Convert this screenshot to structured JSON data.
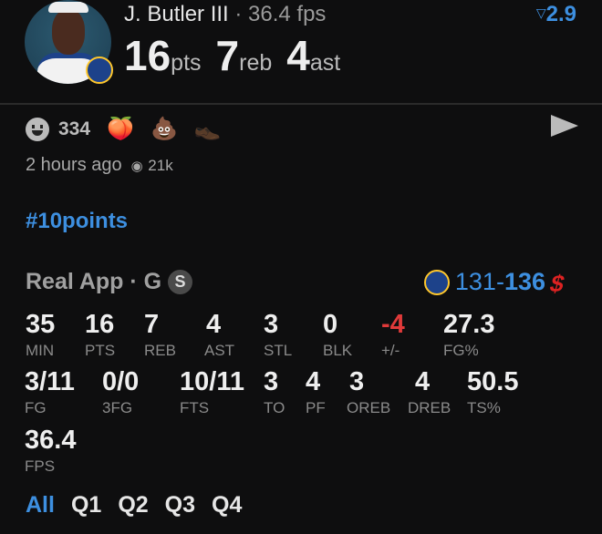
{
  "player": {
    "name": "J. Butler III",
    "fps_text": "36.4 fps",
    "pts": "16",
    "pts_unit": "pts",
    "reb": "7",
    "reb_unit": "reb",
    "ast": "4",
    "ast_unit": "ast",
    "delta": "2.9",
    "delta_icon": "down-triangle-icon"
  },
  "post": {
    "reaction_count": "334",
    "emojis": [
      "🍑",
      "💩",
      "👞"
    ],
    "time": "2 hours ago",
    "views": "21k",
    "hashtag": "#10points"
  },
  "game": {
    "source": "Real App",
    "position": "G",
    "starter_badge": "S",
    "score_home": "131",
    "score_sep": "-",
    "score_away": "136"
  },
  "stats_row1": [
    {
      "v": "35",
      "l": "MIN"
    },
    {
      "v": "16",
      "l": "PTS"
    },
    {
      "v": "7",
      "l": "REB"
    },
    {
      "v": "4",
      "l": "AST"
    },
    {
      "v": "3",
      "l": "STL"
    },
    {
      "v": "0",
      "l": "BLK"
    },
    {
      "v": "-4",
      "l": "+/-"
    },
    {
      "v": "27.3",
      "l": "FG%"
    }
  ],
  "stats_row2": [
    {
      "v": "3/11",
      "l": "FG"
    },
    {
      "v": "0/0",
      "l": "3FG"
    },
    {
      "v": "10/11",
      "l": "FTS"
    },
    {
      "v": "3",
      "l": "TO"
    },
    {
      "v": "4",
      "l": "PF"
    },
    {
      "v": "3",
      "l": "OREB"
    },
    {
      "v": "4",
      "l": "DREB"
    },
    {
      "v": "50.5",
      "l": "TS%"
    }
  ],
  "stats_row3": [
    {
      "v": "36.4",
      "l": "FPS"
    }
  ],
  "quarters": [
    "All",
    "Q1",
    "Q2",
    "Q3",
    "Q4"
  ],
  "colors": {
    "accent": "#3d8fe0",
    "negative": "#e03a3a",
    "background": "#0e0e0f"
  }
}
